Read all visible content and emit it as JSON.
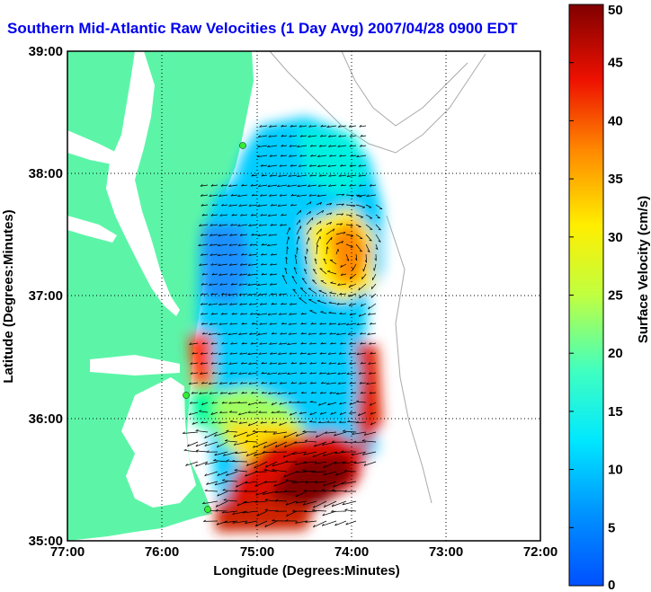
{
  "title": "Southern Mid-Atlantic Raw Velocities (1 Day Avg) 2007/04/28 0900 EDT",
  "axes": {
    "xlabel": "Longitude (Degrees:Minutes)",
    "ylabel": "Latitude (Degrees:Minutes)",
    "xticks": [
      "77:00",
      "76:00",
      "75:00",
      "74:00",
      "73:00",
      "72:00"
    ],
    "yticks": [
      "39:00",
      "38:00",
      "37:00",
      "36:00",
      "35:00"
    ]
  },
  "colorbar": {
    "label": "Surface Velocity (cm/s)",
    "ticks": [
      "0",
      "5",
      "10",
      "15",
      "20",
      "25",
      "30",
      "35",
      "40",
      "45",
      "50"
    ],
    "range": [
      0,
      50
    ]
  },
  "colors": {
    "land": "#5cf5a8",
    "title": "#0000ee",
    "station": "#33ee33"
  },
  "stations": [
    {
      "name": "station-north",
      "lon": -75.15,
      "lat": 38.22
    },
    {
      "name": "station-mid",
      "lon": -75.72,
      "lat": 36.18
    },
    {
      "name": "station-south",
      "lon": -75.55,
      "lat": 35.27
    }
  ]
}
